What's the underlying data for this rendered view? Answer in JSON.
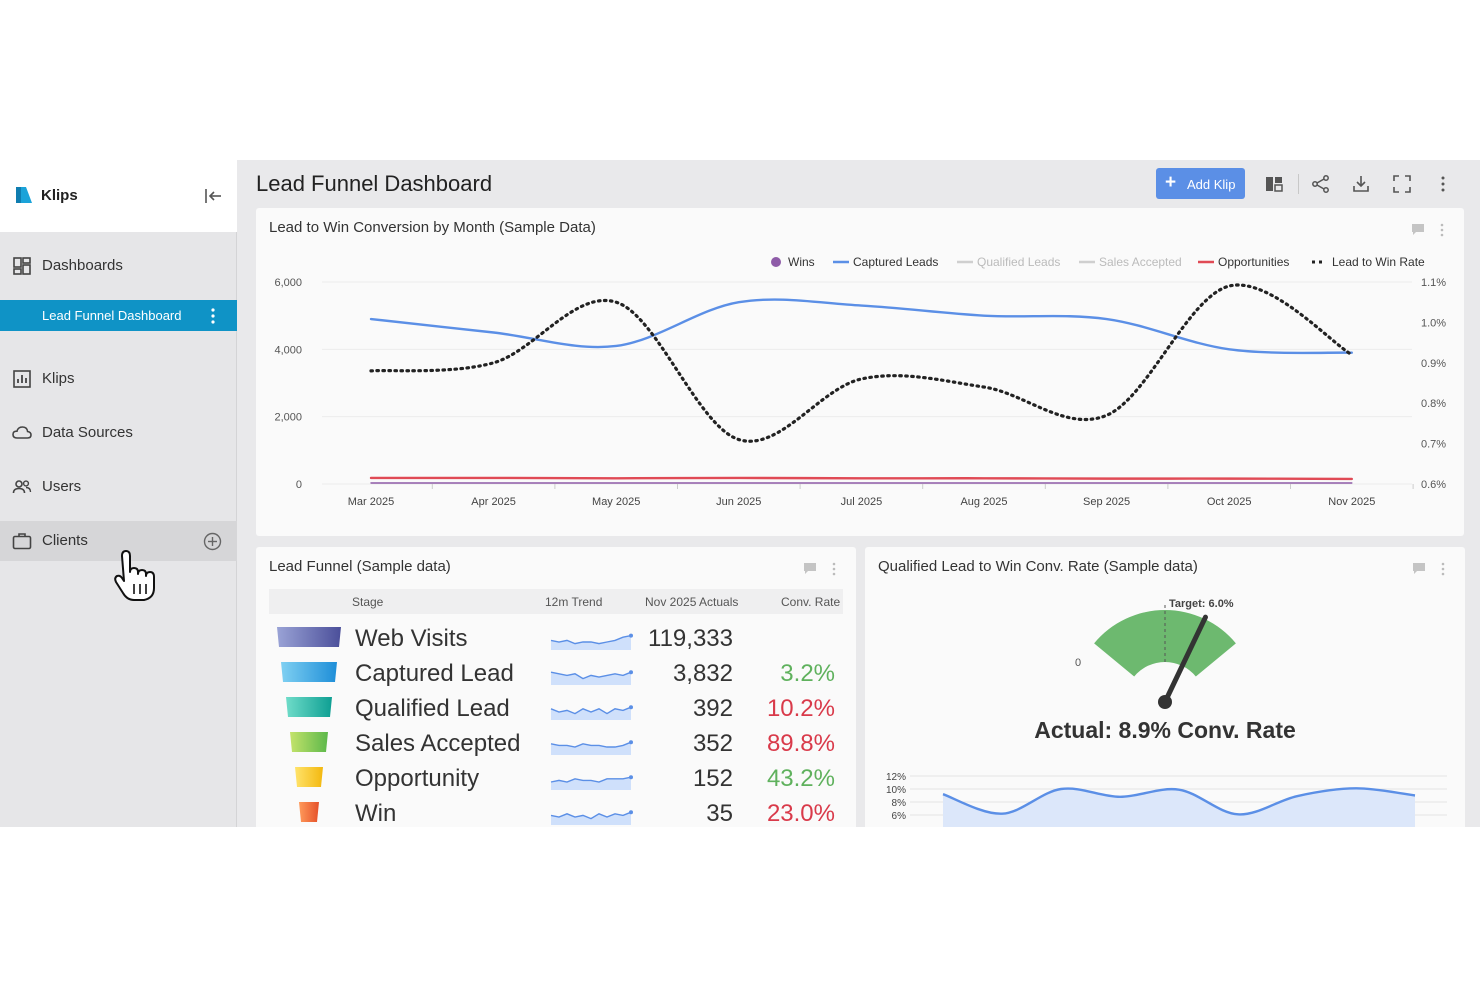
{
  "sidebar": {
    "brand": "Klips",
    "items": [
      {
        "label": "Dashboards",
        "icon": "dashboard-grid-icon"
      },
      {
        "label": "Lead Funnel Dashboard",
        "icon": "more-vertical-icon"
      },
      {
        "label": "Klips",
        "icon": "bar-chart-icon"
      },
      {
        "label": "Data Sources",
        "icon": "cloud-icon"
      },
      {
        "label": "Users",
        "icon": "users-icon"
      },
      {
        "label": "Clients",
        "icon": "briefcase-icon"
      }
    ]
  },
  "header": {
    "title": "Lead Funnel Dashboard",
    "add_klip_label": "Add Klip"
  },
  "colors": {
    "accent": "#0f93c6",
    "button_blue": "#5b8fe6",
    "captured_leads": "#5b8fe6",
    "opportunities": "#e04a55",
    "wins": "#8e5ba8",
    "green": "#5fb15d",
    "red": "#d93a4a",
    "gauge_green": "#6db96f"
  },
  "chart_data": [
    {
      "type": "line",
      "title": "Lead to Win Conversion by Month (Sample Data)",
      "categories": [
        "Mar 2025",
        "Apr 2025",
        "May 2025",
        "Jun 2025",
        "Jul 2025",
        "Aug 2025",
        "Sep 2025",
        "Oct 2025",
        "Nov 2025"
      ],
      "legend": [
        "Wins",
        "Captured Leads",
        "Qualified Leads",
        "Sales Accepted",
        "Opportunities",
        "Lead to Win Rate"
      ],
      "legend_position": "top-right",
      "y_left": {
        "ticks": [
          "6,000",
          "4,000",
          "2,000",
          "0"
        ],
        "range": [
          0,
          6000
        ]
      },
      "y_right": {
        "ticks": [
          "1.1%",
          "1.0%",
          "0.9%",
          "0.8%",
          "0.7%",
          "0.6%"
        ],
        "range": [
          0.6,
          1.1
        ]
      },
      "grid": true,
      "series": [
        {
          "name": "Captured Leads",
          "axis": "left",
          "values": [
            4900,
            4500,
            4100,
            5400,
            5300,
            5000,
            4900,
            4000,
            3900
          ]
        },
        {
          "name": "Opportunities",
          "axis": "left",
          "values": [
            180,
            180,
            170,
            180,
            170,
            170,
            160,
            160,
            150
          ]
        },
        {
          "name": "Wins",
          "axis": "left",
          "values": [
            30,
            30,
            30,
            30,
            30,
            30,
            30,
            30,
            30
          ]
        },
        {
          "name": "Lead to Win Rate",
          "axis": "right",
          "values": [
            0.88,
            0.9,
            1.05,
            0.71,
            0.86,
            0.84,
            0.77,
            1.09,
            0.92
          ]
        }
      ]
    },
    {
      "type": "table",
      "title": "Lead Funnel (Sample data)",
      "columns": [
        "Stage",
        "12m Trend",
        "Nov 2025 Actuals",
        "Conv. Rate"
      ],
      "rows": [
        {
          "stage": "Web Visits",
          "actual": "119,333",
          "rate": "",
          "rate_good": true,
          "color1": "#9aa3d6",
          "color2": "#4b4f9a"
        },
        {
          "stage": "Captured Lead",
          "actual": "3,832",
          "rate": "3.2%",
          "rate_good": true,
          "color1": "#7fd0f2",
          "color2": "#1e8ed8"
        },
        {
          "stage": "Qualified Lead",
          "actual": "392",
          "rate": "10.2%",
          "rate_good": false,
          "color1": "#6fdcc9",
          "color2": "#0e9f93"
        },
        {
          "stage": "Sales Accepted",
          "actual": "352",
          "rate": "89.8%",
          "rate_good": false,
          "color1": "#c4e36b",
          "color2": "#5cb84a"
        },
        {
          "stage": "Opportunity",
          "actual": "152",
          "rate": "43.2%",
          "rate_good": true,
          "color1": "#ffe36b",
          "color2": "#f3b80f"
        },
        {
          "stage": "Win",
          "actual": "35",
          "rate": "23.0%",
          "rate_good": false,
          "color1": "#ff9a5b",
          "color2": "#e5512a"
        }
      ]
    },
    {
      "type": "area",
      "title": "Qualified Lead to Win Conv. Rate (Sample data)",
      "gauge": {
        "min_label": "0",
        "target_label": "Target: 6.0%",
        "value_label": "Actual: 8.9% Conv. Rate",
        "value": 8.9,
        "target": 6.0,
        "max": 12
      },
      "y_ticks": [
        "12%",
        "10%",
        "8%",
        "6%"
      ],
      "values": [
        9.2,
        6.2,
        10.0,
        8.8,
        9.9,
        6.1,
        8.9,
        10.1,
        9.0
      ]
    }
  ]
}
